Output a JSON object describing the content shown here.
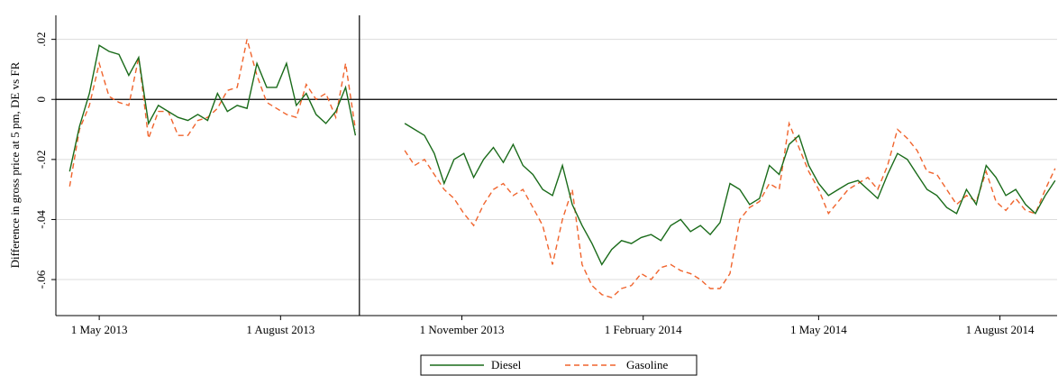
{
  "chart_data": {
    "type": "line",
    "y_label": "Difference in gross price at 5 pm, DE vs FR",
    "x": [
      "2013-04-16",
      "2013-04-21",
      "2013-04-26",
      "2013-05-01",
      "2013-05-06",
      "2013-05-11",
      "2013-05-16",
      "2013-05-21",
      "2013-05-26",
      "2013-05-31",
      "2013-06-05",
      "2013-06-10",
      "2013-06-15",
      "2013-06-20",
      "2013-06-25",
      "2013-06-30",
      "2013-07-05",
      "2013-07-10",
      "2013-07-15",
      "2013-07-20",
      "2013-07-25",
      "2013-07-30",
      "2013-08-04",
      "2013-08-09",
      "2013-08-14",
      "2013-08-19",
      "2013-08-24",
      "2013-08-29",
      "2013-09-03",
      "2013-09-08",
      "2013-09-20",
      "2013-10-03",
      "2013-10-08",
      "2013-10-13",
      "2013-10-18",
      "2013-10-23",
      "2013-10-28",
      "2013-11-02",
      "2013-11-07",
      "2013-11-12",
      "2013-11-17",
      "2013-11-22",
      "2013-11-27",
      "2013-12-02",
      "2013-12-07",
      "2013-12-12",
      "2013-12-17",
      "2013-12-22",
      "2013-12-27",
      "2014-01-01",
      "2014-01-06",
      "2014-01-11",
      "2014-01-16",
      "2014-01-21",
      "2014-01-26",
      "2014-01-31",
      "2014-02-05",
      "2014-02-10",
      "2014-02-15",
      "2014-02-20",
      "2014-02-25",
      "2014-03-02",
      "2014-03-07",
      "2014-03-12",
      "2014-03-17",
      "2014-03-22",
      "2014-03-27",
      "2014-04-01",
      "2014-04-06",
      "2014-04-11",
      "2014-04-16",
      "2014-04-21",
      "2014-04-26",
      "2014-05-01",
      "2014-05-06",
      "2014-05-11",
      "2014-05-16",
      "2014-05-21",
      "2014-05-26",
      "2014-05-31",
      "2014-06-05",
      "2014-06-10",
      "2014-06-15",
      "2014-06-20",
      "2014-06-25",
      "2014-06-30",
      "2014-07-05",
      "2014-07-10",
      "2014-07-15",
      "2014-07-20",
      "2014-07-25",
      "2014-07-30",
      "2014-08-04",
      "2014-08-09",
      "2014-08-14",
      "2014-08-19",
      "2014-08-24",
      "2014-08-29"
    ],
    "series": [
      {
        "name": "Diesel",
        "color": "#1a6b1a",
        "dash": "none",
        "values": [
          -0.024,
          -0.009,
          0.002,
          0.018,
          0.016,
          0.015,
          0.008,
          0.014,
          -0.008,
          -0.002,
          -0.004,
          -0.006,
          -0.007,
          -0.005,
          -0.007,
          0.002,
          -0.004,
          -0.002,
          -0.003,
          0.012,
          0.004,
          0.004,
          0.012,
          -0.002,
          0.002,
          -0.005,
          -0.008,
          -0.004,
          0.004,
          -0.012,
          null,
          -0.008,
          -0.01,
          -0.012,
          -0.018,
          -0.028,
          -0.02,
          -0.018,
          -0.026,
          -0.02,
          -0.016,
          -0.021,
          -0.015,
          -0.022,
          -0.025,
          -0.03,
          -0.032,
          -0.022,
          -0.035,
          -0.042,
          -0.048,
          -0.055,
          -0.05,
          -0.047,
          -0.048,
          -0.046,
          -0.045,
          -0.047,
          -0.042,
          -0.04,
          -0.044,
          -0.042,
          -0.045,
          -0.041,
          -0.028,
          -0.03,
          -0.035,
          -0.033,
          -0.022,
          -0.025,
          -0.015,
          -0.012,
          -0.022,
          -0.028,
          -0.032,
          -0.03,
          -0.028,
          -0.027,
          -0.03,
          -0.033,
          -0.025,
          -0.018,
          -0.02,
          -0.025,
          -0.03,
          -0.032,
          -0.036,
          -0.038,
          -0.03,
          -0.035,
          -0.022,
          -0.026,
          -0.032,
          -0.03,
          -0.035,
          -0.038,
          -0.032,
          -0.027
        ]
      },
      {
        "name": "Gasoline",
        "color": "#f0642d",
        "dash": "6 4",
        "values": [
          -0.029,
          -0.01,
          -0.002,
          0.012,
          0.001,
          -0.001,
          -0.002,
          0.014,
          -0.013,
          -0.004,
          -0.004,
          -0.012,
          -0.012,
          -0.007,
          -0.006,
          -0.003,
          0.003,
          0.004,
          0.02,
          0.008,
          -0.001,
          -0.003,
          -0.005,
          -0.006,
          0.005,
          0.0,
          0.002,
          -0.006,
          0.012,
          -0.01,
          null,
          -0.017,
          -0.022,
          -0.02,
          -0.025,
          -0.03,
          -0.033,
          -0.038,
          -0.042,
          -0.035,
          -0.03,
          -0.028,
          -0.032,
          -0.03,
          -0.036,
          -0.042,
          -0.055,
          -0.04,
          -0.03,
          -0.055,
          -0.062,
          -0.065,
          -0.066,
          -0.063,
          -0.062,
          -0.058,
          -0.06,
          -0.056,
          -0.055,
          -0.057,
          -0.058,
          -0.06,
          -0.063,
          -0.063,
          -0.058,
          -0.04,
          -0.036,
          -0.034,
          -0.028,
          -0.03,
          -0.008,
          -0.016,
          -0.024,
          -0.03,
          -0.038,
          -0.034,
          -0.03,
          -0.028,
          -0.026,
          -0.03,
          -0.022,
          -0.01,
          -0.013,
          -0.017,
          -0.024,
          -0.025,
          -0.03,
          -0.035,
          -0.032,
          -0.034,
          -0.024,
          -0.034,
          -0.037,
          -0.033,
          -0.037,
          -0.038,
          -0.03,
          -0.023
        ]
      }
    ],
    "xlim": [
      "2013-04-09",
      "2014-08-30"
    ],
    "xticks": [
      {
        "value": "2013-05-01",
        "label": "1 May 2013"
      },
      {
        "value": "2013-08-01",
        "label": "1 August 2013"
      },
      {
        "value": "2013-11-01",
        "label": "1 November 2013"
      },
      {
        "value": "2014-02-01",
        "label": "1 February 2014"
      },
      {
        "value": "2014-05-01",
        "label": "1 May 2014"
      },
      {
        "value": "2014-08-01",
        "label": "1 August 2014"
      }
    ],
    "ylim": [
      -0.072,
      0.028
    ],
    "yticks": [
      {
        "value": -0.06,
        "label": "-.06"
      },
      {
        "value": -0.04,
        "label": "-.04"
      },
      {
        "value": -0.02,
        "label": "-.02"
      },
      0,
      {
        "value": 0.02,
        "label": ".02"
      }
    ],
    "grid": true,
    "hline": 0,
    "vline": "2013-09-10",
    "legend": "bottom"
  }
}
